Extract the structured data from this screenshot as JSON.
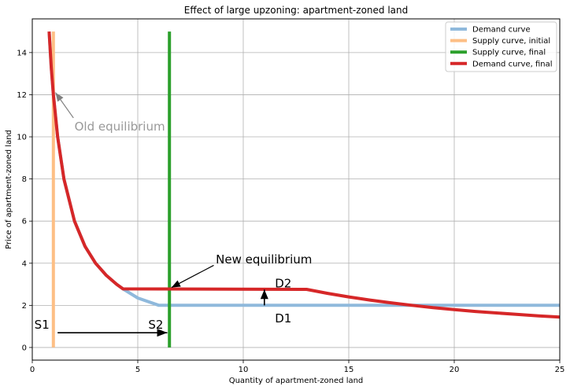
{
  "chart_data": {
    "type": "line",
    "title": "Effect of large upzoning: apartment-zoned land",
    "xlabel": "Quantity of apartment-zoned land",
    "ylabel": "Price of apartment-zoned land",
    "xlim": [
      0,
      25
    ],
    "ylim": [
      -0.6,
      15.6
    ],
    "xticks": [
      0,
      5,
      10,
      15,
      20,
      25
    ],
    "yticks": [
      0,
      2,
      4,
      6,
      8,
      10,
      12,
      14
    ],
    "grid": true,
    "legend_position": "top-right",
    "series": [
      {
        "name": "Demand curve",
        "color": "#8fb9dc",
        "points": [
          [
            0.8,
            15.0
          ],
          [
            0.9,
            13.3
          ],
          [
            1.0,
            12.0
          ],
          [
            1.2,
            10.0
          ],
          [
            1.5,
            8.0
          ],
          [
            2.0,
            6.0
          ],
          [
            2.5,
            4.8
          ],
          [
            3.0,
            4.0
          ],
          [
            3.5,
            3.43
          ],
          [
            4.0,
            3.0
          ],
          [
            4.3,
            2.78
          ],
          [
            5.0,
            2.35
          ],
          [
            6.0,
            2.0
          ],
          [
            13.0,
            2.0
          ],
          [
            18.0,
            2.0
          ],
          [
            25.0,
            2.0
          ]
        ]
      },
      {
        "name": "Supply curve, initial",
        "color": "#fdbf85",
        "points": [
          [
            1.0,
            0.0
          ],
          [
            1.0,
            15.0
          ]
        ]
      },
      {
        "name": "Supply curve, final",
        "color": "#2ca02c",
        "points": [
          [
            6.5,
            0.0
          ],
          [
            6.5,
            15.0
          ]
        ]
      },
      {
        "name": "Demand curve, final",
        "color": "#d62728",
        "points": [
          [
            0.8,
            15.0
          ],
          [
            0.9,
            13.3
          ],
          [
            1.0,
            12.0
          ],
          [
            1.2,
            10.0
          ],
          [
            1.5,
            8.0
          ],
          [
            2.0,
            6.0
          ],
          [
            2.5,
            4.8
          ],
          [
            3.0,
            4.0
          ],
          [
            3.5,
            3.43
          ],
          [
            4.0,
            3.0
          ],
          [
            4.3,
            2.78
          ],
          [
            13.0,
            2.76
          ],
          [
            14.0,
            2.57
          ],
          [
            15.0,
            2.4
          ],
          [
            16.0,
            2.25
          ],
          [
            17.0,
            2.12
          ],
          [
            18.0,
            2.0
          ],
          [
            19.0,
            1.89
          ],
          [
            20.0,
            1.8
          ],
          [
            21.0,
            1.71
          ],
          [
            22.0,
            1.64
          ],
          [
            23.0,
            1.57
          ],
          [
            24.0,
            1.5
          ],
          [
            25.0,
            1.44
          ]
        ]
      }
    ],
    "annotations": {
      "old_equilibrium": {
        "text": "Old equilibrium",
        "x": 2.0,
        "y": 10.3,
        "arrow_to": [
          1.1,
          12.1
        ],
        "color": "#999999"
      },
      "new_equilibrium": {
        "text": "New equilibrium",
        "x": 8.7,
        "y": 4.0,
        "arrow_to": [
          6.6,
          2.85
        ],
        "color": "#000000"
      },
      "d2": {
        "text": "D2",
        "x": 11.5,
        "y": 2.85
      },
      "d1": {
        "text": "D1",
        "x": 11.5,
        "y": 1.2
      },
      "s1": {
        "text": "S1",
        "x": 0.1,
        "y": 0.9
      },
      "s2": {
        "text": "S2",
        "x": 5.5,
        "y": 0.9
      },
      "shift_arrow_supply": {
        "from": [
          1.2,
          0.7
        ],
        "to": [
          6.4,
          0.7
        ]
      },
      "shift_arrow_demand": {
        "from": [
          11.0,
          2.0
        ],
        "to": [
          11.0,
          2.75
        ]
      }
    }
  }
}
